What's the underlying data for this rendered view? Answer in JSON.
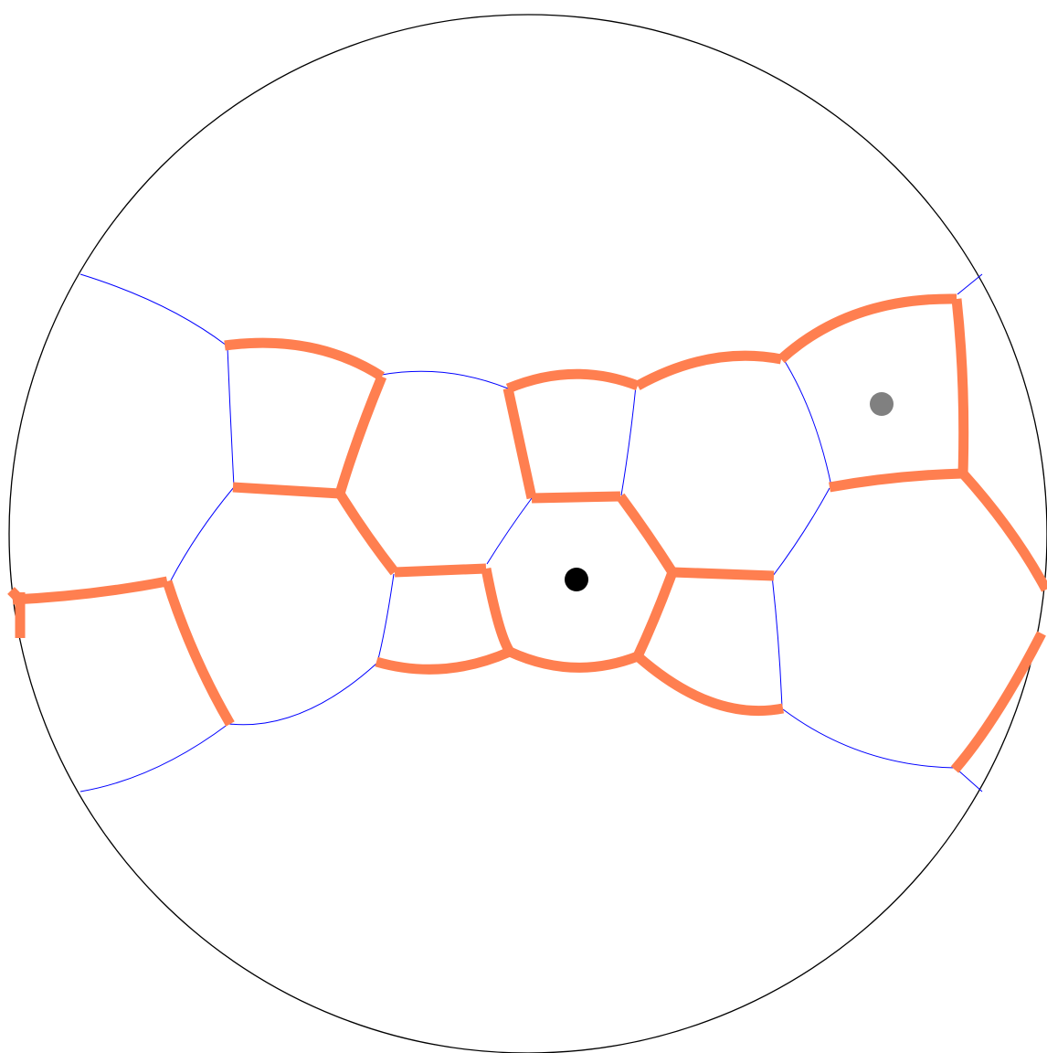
{
  "diagram": {
    "description_free": true,
    "colors": {
      "background": "#ffffff",
      "boundary_circle": "#000000",
      "thin_edges": "#0000ff",
      "thick_edges": "#ff7f50",
      "center_dot": "#000000",
      "secondary_dot": "#808080"
    },
    "markers": [
      {
        "name": "center-dot",
        "color": "#000000"
      },
      {
        "name": "secondary-dot",
        "color": "#808080"
      }
    ]
  }
}
